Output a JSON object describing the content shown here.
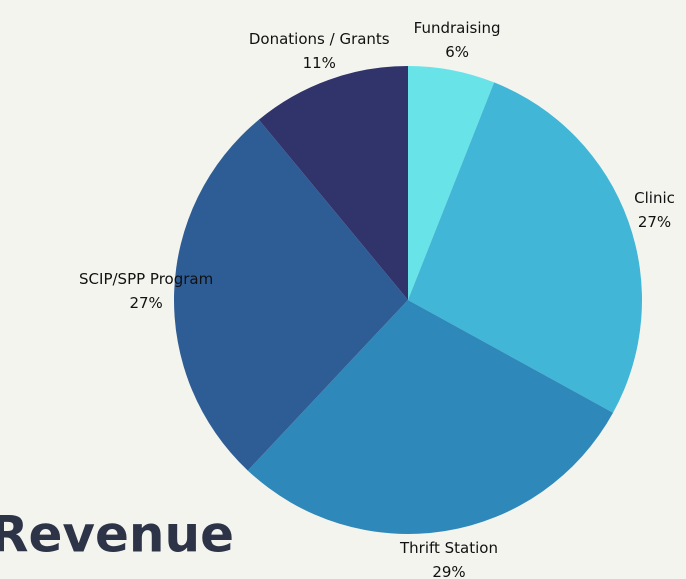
{
  "chart_data": {
    "type": "pie",
    "title": "Revenue",
    "categories": [
      "Fundraising",
      "Clinic",
      "Thrift Station",
      "SCIP/SPP Program",
      "Donations / Grants"
    ],
    "values": [
      6,
      27,
      29,
      27,
      11
    ],
    "value_labels": [
      "6%",
      "27%",
      "29%",
      "27%",
      "11%"
    ],
    "colors": [
      "#68e3e8",
      "#41b6d6",
      "#2e89ba",
      "#2e5d96",
      "#31336b"
    ]
  }
}
